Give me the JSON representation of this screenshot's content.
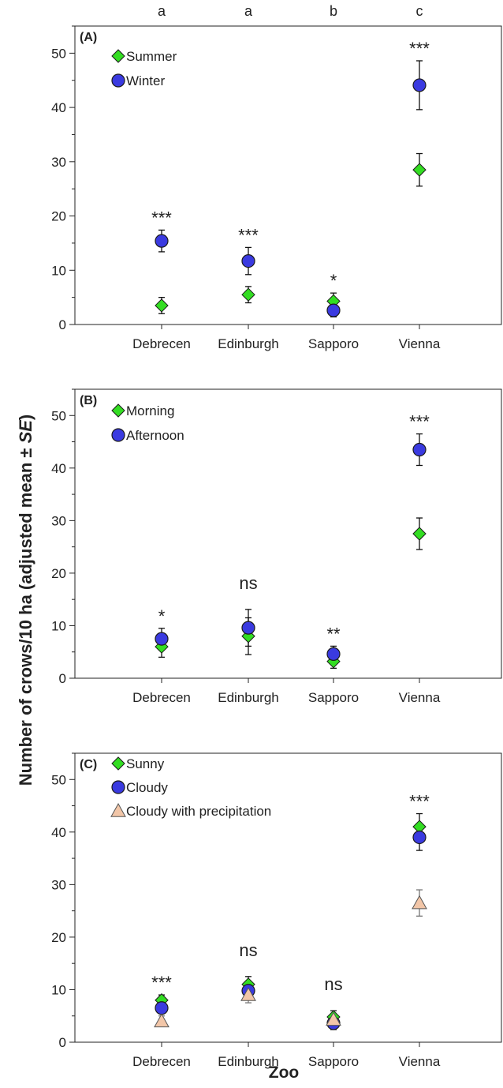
{
  "figure": {
    "ylabel": "Number of crows/10 ha (adjusted mean ± SE)",
    "ylabel_parts": [
      "Number of crows/10 ha (adjusted mean ± ",
      "SE",
      ")"
    ],
    "xlabel": "Zoo"
  },
  "colors": {
    "green_marker": "#33dd22",
    "blue_marker": "#3a3ae0",
    "peach_marker": "#f2c6a8"
  },
  "chart_data": [
    {
      "type": "scatter",
      "panel_label": "(A)",
      "categories": [
        "Debrecen",
        "Edinburgh",
        "Sapporo",
        "Vienna"
      ],
      "group_letters": [
        "a",
        "a",
        "b",
        "c"
      ],
      "significance": [
        "***",
        "***",
        "*",
        "***"
      ],
      "ylim": [
        0,
        55
      ],
      "yticks": [
        0,
        10,
        20,
        30,
        40,
        50
      ],
      "legend_position": "top-left",
      "series": [
        {
          "name": "Summer",
          "marker": "diamond",
          "color": "#33dd22",
          "values": [
            3.5,
            5.5,
            4.3,
            28.5
          ],
          "se": [
            1.5,
            1.5,
            1.5,
            3.0
          ]
        },
        {
          "name": "Winter",
          "marker": "circle",
          "color": "#3a3ae0",
          "values": [
            15.4,
            11.7,
            2.6,
            44.1
          ],
          "se": [
            2.0,
            2.5,
            1.2,
            4.5
          ]
        }
      ]
    },
    {
      "type": "scatter",
      "panel_label": "(B)",
      "categories": [
        "Debrecen",
        "Edinburgh",
        "Sapporo",
        "Vienna"
      ],
      "significance": [
        "*",
        "ns",
        "**",
        "***"
      ],
      "ylim": [
        0,
        55
      ],
      "yticks": [
        0,
        10,
        20,
        30,
        40,
        50
      ],
      "legend_position": "top-left",
      "series": [
        {
          "name": "Morning",
          "marker": "diamond",
          "color": "#33dd22",
          "values": [
            6.0,
            8.0,
            3.2,
            27.5
          ],
          "se": [
            2.0,
            3.5,
            1.3,
            3.0
          ]
        },
        {
          "name": "Afternoon",
          "marker": "circle",
          "color": "#3a3ae0",
          "values": [
            7.5,
            9.6,
            4.6,
            43.5
          ],
          "se": [
            2.0,
            3.5,
            1.5,
            3.0
          ]
        }
      ]
    },
    {
      "type": "scatter",
      "panel_label": "(C)",
      "categories": [
        "Debrecen",
        "Edinburgh",
        "Sapporo",
        "Vienna"
      ],
      "significance": [
        "***",
        "ns",
        "ns",
        "***"
      ],
      "ylim": [
        0,
        55
      ],
      "yticks": [
        0,
        10,
        20,
        30,
        40,
        50
      ],
      "legend_position": "top-left",
      "series": [
        {
          "name": "Sunny",
          "marker": "diamond",
          "color": "#33dd22",
          "values": [
            8.0,
            11.0,
            4.8,
            41.0
          ],
          "se": [
            1.0,
            1.5,
            1.2,
            2.5
          ]
        },
        {
          "name": "Cloudy",
          "marker": "circle",
          "color": "#3a3ae0",
          "values": [
            6.5,
            9.8,
            3.6,
            39.0
          ],
          "se": [
            1.0,
            1.5,
            1.2,
            2.5
          ]
        },
        {
          "name": "Cloudy with precipitation",
          "marker": "triangle",
          "color": "#f2c6a8",
          "values": [
            4.0,
            9.0,
            4.3,
            26.5
          ],
          "se": [
            1.0,
            1.5,
            1.2,
            2.5
          ]
        }
      ]
    }
  ]
}
